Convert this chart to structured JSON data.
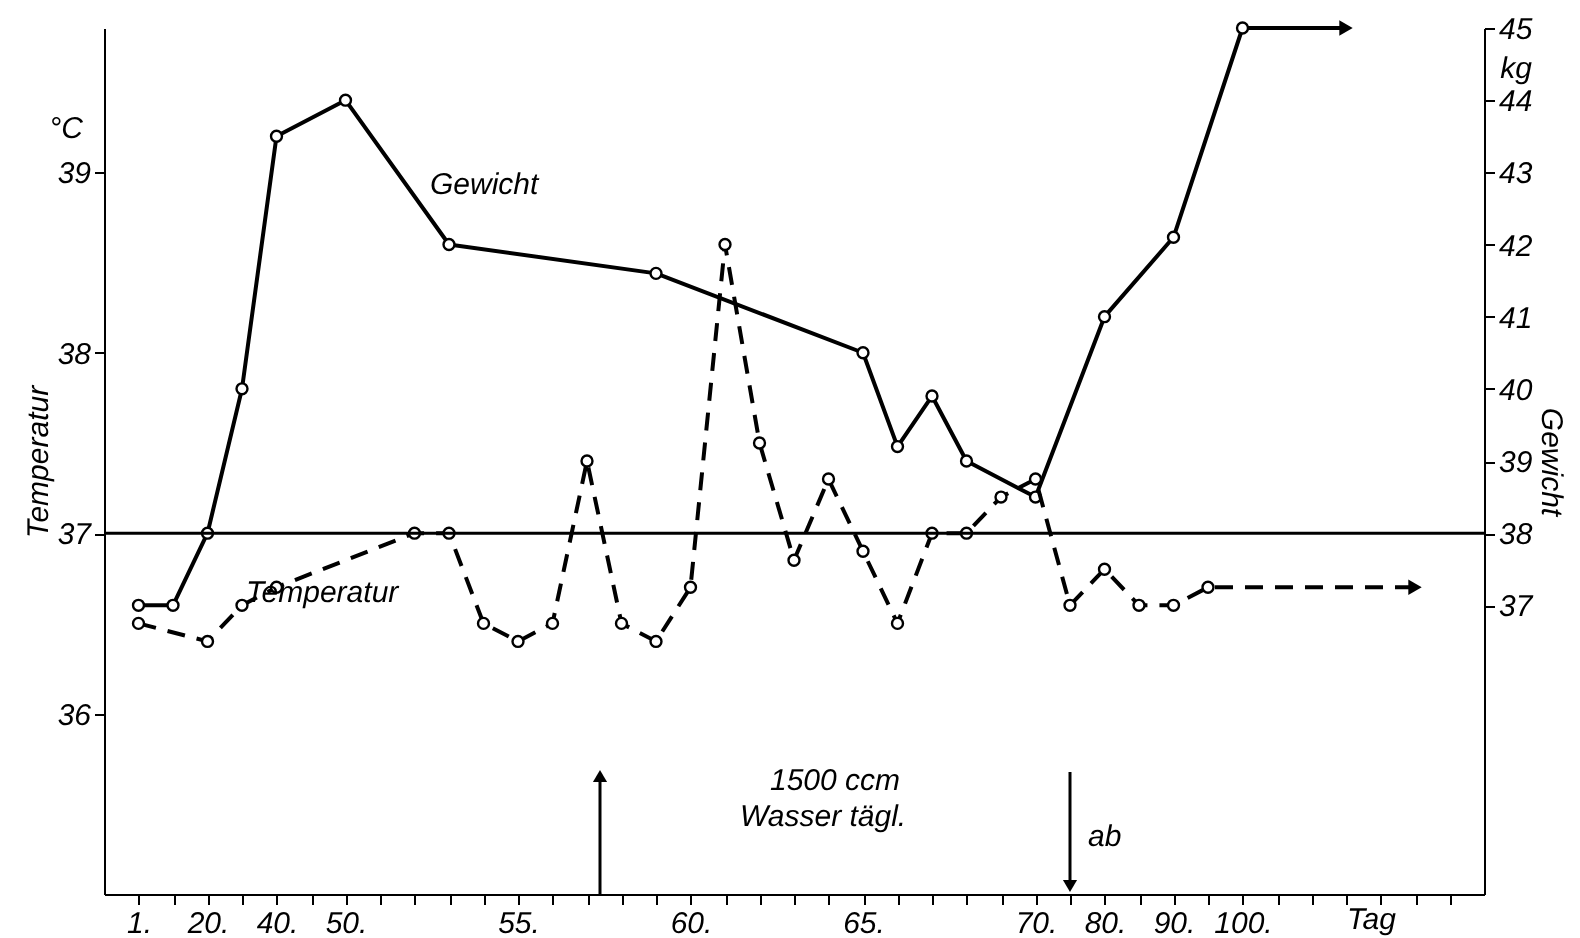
{
  "chart_data": {
    "type": "line",
    "ylabel": "Temperatur",
    "y2label": "Gewicht",
    "categories": [
      "1.",
      null,
      "20.",
      null,
      "40.",
      null,
      "50.",
      null,
      null,
      null,
      null,
      "55.",
      null,
      null,
      null,
      null,
      "60.",
      null,
      null,
      null,
      null,
      "65.",
      null,
      null,
      null,
      null,
      "70.",
      null,
      "80.",
      null,
      "90.",
      null,
      "100.",
      null,
      null,
      null,
      null,
      null,
      null
    ],
    "xlabel": "Tag",
    "series": [
      {
        "name": "Gewicht",
        "color": "#000000",
        "axis": "y2",
        "line_style": "solid",
        "values": [
          37,
          37,
          38,
          40,
          43.5,
          null,
          44,
          null,
          null,
          42,
          null,
          null,
          null,
          null,
          null,
          41.6,
          null,
          null,
          null,
          null,
          null,
          40.5,
          39.2,
          39.9,
          39.0,
          null,
          38.5,
          null,
          41.0,
          null,
          42.1,
          null,
          45,
          null,
          null,
          45,
          null,
          null,
          null
        ]
      },
      {
        "name": "Temperatur",
        "color": "#000000",
        "line_style": "dashed",
        "values": [
          36.5,
          null,
          36.4,
          36.6,
          36.7,
          null,
          null,
          null,
          37.0,
          37.0,
          36.5,
          36.4,
          36.5,
          37.4,
          36.5,
          36.4,
          36.7,
          38.6,
          37.5,
          36.85,
          37.3,
          36.9,
          36.5,
          37.0,
          37.0,
          37.2,
          37.3,
          36.6,
          36.8,
          36.6,
          36.6,
          36.7,
          null,
          null,
          null,
          null,
          null,
          36.7,
          null
        ]
      }
    ],
    "ylim": [
      35,
      39.8
    ],
    "yticks": [
      36,
      37,
      38,
      39
    ],
    "y2lim": [
      33,
      45
    ],
    "y2ticks": [
      37,
      38,
      39,
      40,
      41,
      42,
      43,
      44,
      45
    ],
    "ref_lines": [
      {
        "axis": "y",
        "value": 37,
        "label": null
      }
    ],
    "annotations": [
      "°C",
      "kg",
      "1500 ccm",
      "Wasser tägl.",
      "ab"
    ],
    "marker": "circle",
    "grid": false
  }
}
